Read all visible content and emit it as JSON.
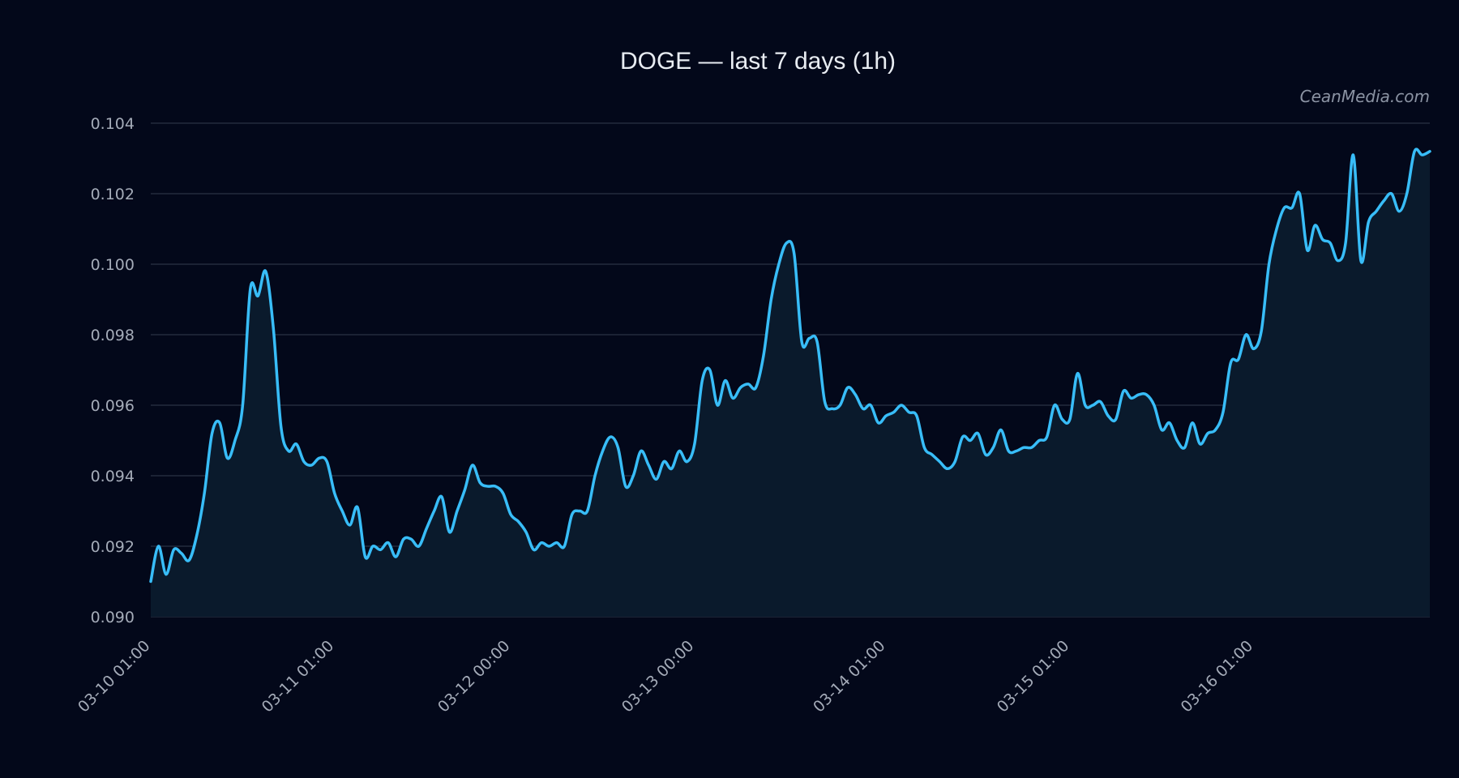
{
  "title": "DOGE — last 7 days (1h)",
  "watermark": "CeanMedia.com",
  "colors": {
    "background": "#03081a",
    "line": "#38bdf8",
    "area": "#0a1a2c",
    "grid": "#2a3344",
    "tick_text": "#a4abb8"
  },
  "chart_data": {
    "type": "area",
    "title": "DOGE — last 7 days (1h)",
    "xlabel": "",
    "ylabel": "",
    "ylim": [
      0.09,
      0.104
    ],
    "yticks": [
      "0.090",
      "0.092",
      "0.094",
      "0.096",
      "0.098",
      "0.100",
      "0.102",
      "0.104"
    ],
    "xticks": [
      {
        "label": "03-10 01:00",
        "hour": 0
      },
      {
        "label": "03-11 01:00",
        "hour": 24
      },
      {
        "label": "03-12 00:00",
        "hour": 47
      },
      {
        "label": "03-13 00:00",
        "hour": 71
      },
      {
        "label": "03-14 01:00",
        "hour": 96
      },
      {
        "label": "03-15 01:00",
        "hour": 120
      },
      {
        "label": "03-16 01:00",
        "hour": 144
      }
    ],
    "x_start": "03-10 01:00",
    "x_step": "1h",
    "grid": true,
    "series": [
      {
        "values": [
          0.091,
          0.092,
          0.0912,
          0.0919,
          0.0918,
          0.0916,
          0.0923,
          0.0935,
          0.0952,
          0.0955,
          0.0945,
          0.095,
          0.096,
          0.0993,
          0.0991,
          0.0998,
          0.0982,
          0.0954,
          0.0947,
          0.0949,
          0.0944,
          0.0943,
          0.0945,
          0.0944,
          0.0935,
          0.093,
          0.0926,
          0.0931,
          0.0917,
          0.092,
          0.0919,
          0.0921,
          0.0917,
          0.0922,
          0.0922,
          0.092,
          0.0925,
          0.093,
          0.0934,
          0.0924,
          0.093,
          0.0936,
          0.0943,
          0.0938,
          0.0937,
          0.0937,
          0.0935,
          0.0929,
          0.0927,
          0.0924,
          0.0919,
          0.0921,
          0.092,
          0.0921,
          0.092,
          0.0929,
          0.093,
          0.093,
          0.094,
          0.0947,
          0.0951,
          0.0948,
          0.0937,
          0.094,
          0.0947,
          0.0943,
          0.0939,
          0.0944,
          0.0942,
          0.0947,
          0.0944,
          0.0949,
          0.0967,
          0.097,
          0.096,
          0.0967,
          0.0962,
          0.0965,
          0.0966,
          0.0965,
          0.0974,
          0.099,
          0.1,
          0.1006,
          0.1003,
          0.0978,
          0.0979,
          0.0978,
          0.0961,
          0.0959,
          0.096,
          0.0965,
          0.0963,
          0.0959,
          0.096,
          0.0955,
          0.0957,
          0.0958,
          0.096,
          0.0958,
          0.0957,
          0.0948,
          0.0946,
          0.0944,
          0.0942,
          0.0944,
          0.0951,
          0.095,
          0.0952,
          0.0946,
          0.0948,
          0.0953,
          0.0947,
          0.0947,
          0.0948,
          0.0948,
          0.095,
          0.0951,
          0.096,
          0.0956,
          0.0956,
          0.0969,
          0.096,
          0.096,
          0.0961,
          0.0957,
          0.0956,
          0.0964,
          0.0962,
          0.0963,
          0.0963,
          0.096,
          0.0953,
          0.0955,
          0.095,
          0.0948,
          0.0955,
          0.0949,
          0.0952,
          0.0953,
          0.0958,
          0.0972,
          0.0973,
          0.098,
          0.0976,
          0.0981,
          0.1,
          0.101,
          0.1016,
          0.1016,
          0.102,
          0.1004,
          0.1011,
          0.1007,
          0.1006,
          0.1001,
          0.1006,
          0.1031,
          0.1001,
          0.1012,
          0.1015,
          0.1018,
          0.102,
          0.1015,
          0.102,
          0.1032,
          0.1031,
          0.1032
        ]
      }
    ]
  }
}
